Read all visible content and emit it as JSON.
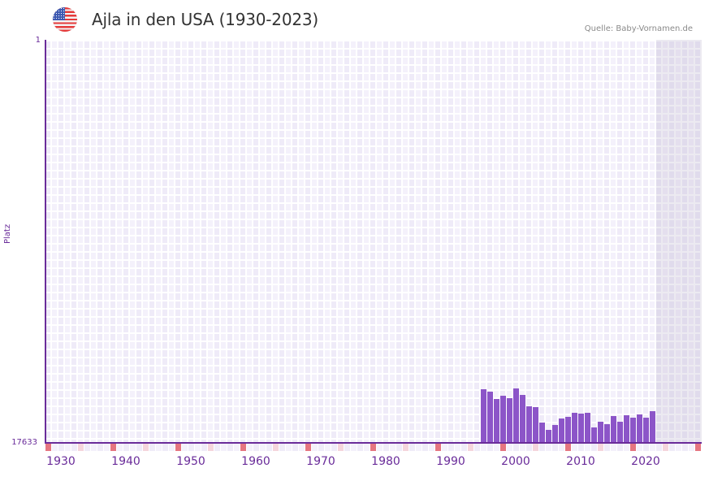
{
  "header": {
    "title": "Ajla in den USA (1930-2023)",
    "source": "Quelle: Baby-Vornamen.de",
    "flag_icon": "us-flag-icon"
  },
  "colors": {
    "bar": "#8c55c8",
    "axis": "#6a2c9a",
    "tick_text": "#6a2c9a",
    "grid_cell_a": "#efebf8",
    "grid_cell_b": "#f4f1fb",
    "decade_marker": "#e57580",
    "half_decade_marker": "#f5d5dc",
    "marker_bg": "#efebf8"
  },
  "axes": {
    "y_label": "Platz",
    "y_top_tick": "1",
    "y_bottom_tick": "17633",
    "x_ticks": [
      "1930",
      "1940",
      "1950",
      "1960",
      "1970",
      "1980",
      "1990",
      "2000",
      "2010",
      "2020"
    ]
  },
  "chart_data": {
    "type": "bar",
    "title": "Ajla in den USA (1930-2023)",
    "xlabel": "",
    "ylabel": "Platz",
    "y_inverted": true,
    "ylim": [
      1,
      17633
    ],
    "xlim": [
      1928,
      2028
    ],
    "shaded_future_from": 2022,
    "grid": true,
    "legend": null,
    "categories": [
      1995,
      1996,
      1997,
      1998,
      1999,
      2000,
      2001,
      2002,
      2003,
      2004,
      2005,
      2006,
      2007,
      2008,
      2009,
      2010,
      2011,
      2012,
      2013,
      2014,
      2015,
      2016,
      2017,
      2018,
      2019,
      2020,
      2021
    ],
    "values": [
      15287,
      15393,
      15713,
      15571,
      15677,
      15251,
      15535,
      16033,
      16068,
      16744,
      17064,
      16850,
      16566,
      16495,
      16317,
      16353,
      16317,
      16957,
      16708,
      16815,
      16460,
      16708,
      16424,
      16531,
      16389,
      16531,
      16246
    ],
    "x_ticks": [
      1930,
      1940,
      1950,
      1960,
      1970,
      1980,
      1990,
      2000,
      2010,
      2020
    ],
    "y_ticks": [
      1,
      17633
    ]
  }
}
